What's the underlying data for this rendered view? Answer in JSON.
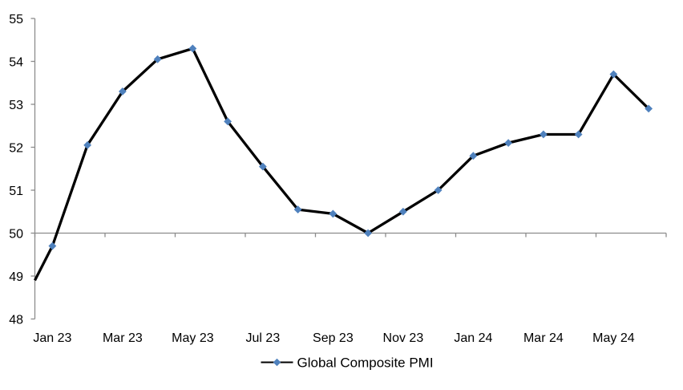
{
  "chart_data": {
    "type": "line",
    "title": "",
    "categories": [
      "Jan 23",
      "Feb 23",
      "Mar 23",
      "Apr 23",
      "May 23",
      "Jun 23",
      "Jul 23",
      "Aug 23",
      "Sep 23",
      "Oct 23",
      "Nov 23",
      "Dec 23",
      "Jan 24",
      "Feb 24",
      "Mar 24",
      "Apr 24",
      "May 24",
      "Jun 24"
    ],
    "series": [
      {
        "name": "Global Composite PMI",
        "values": [
          49.7,
          52.05,
          53.3,
          54.05,
          54.3,
          52.6,
          51.55,
          50.55,
          50.45,
          50.0,
          50.5,
          51.0,
          51.8,
          52.1,
          52.3,
          52.3,
          53.7,
          52.9
        ],
        "line_color": "#000000",
        "marker": "diamond",
        "marker_color": "#4F81BD"
      }
    ],
    "left_edge_entry_value": 48.9,
    "x_tick_labels": [
      "Jan 23",
      "Mar 23",
      "May 23",
      "Jul 23",
      "Sep 23",
      "Nov 23",
      "Jan 24",
      "Mar 24",
      "May 24"
    ],
    "x_label_interval": 2,
    "yticks": [
      55,
      54,
      53,
      52,
      51,
      50,
      49,
      48
    ],
    "ylim": [
      48,
      55
    ],
    "category_axis_crosses_at": 50,
    "legend": {
      "label": "Global Composite PMI",
      "position": "bottom-center"
    },
    "axis_color": "#8C8C8C",
    "text_color": "#000000",
    "grid": "off"
  }
}
